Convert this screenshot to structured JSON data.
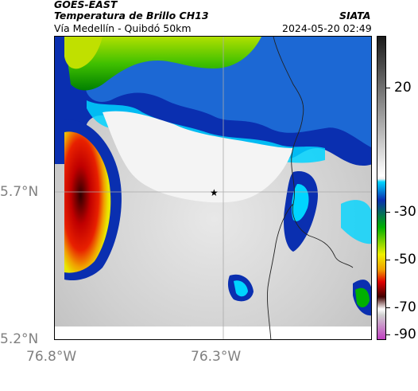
{
  "header": {
    "satellite": "GOES-EAST",
    "product": "Temperatura de Brillo CH13",
    "source": "SIATA",
    "route": "Vía Medellín - Quibdó 50km",
    "datetime": "2024-05-20 02:49"
  },
  "axes": {
    "lat_labels": [
      "5.7°N",
      "5.2°N"
    ],
    "lon_labels": [
      "76.8°W",
      "76.3°W"
    ]
  },
  "colorbar": {
    "tick_labels": [
      "20",
      "-30",
      "-50",
      "-70",
      "-90"
    ],
    "colors": {
      "dark": "#1a1a1a",
      "gray_light": "#f0f0f0",
      "cyan": "#00d4ff",
      "blue": "#0a2fb0",
      "green": "#00b000",
      "yellow": "#f0f000",
      "red": "#e00000",
      "darkred": "#400000",
      "magenta": "#c040c0"
    }
  },
  "map": {
    "marker_icon": "star-icon"
  }
}
